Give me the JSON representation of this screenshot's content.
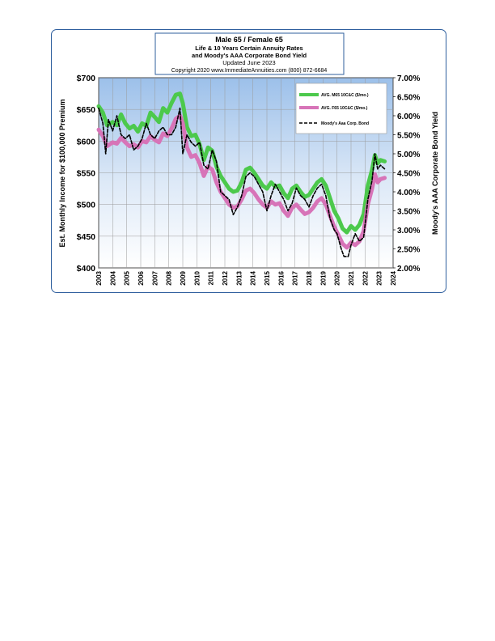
{
  "chart_data": {
    "type": "line",
    "title": "Male 65 / Female 65",
    "subtitle_lines": [
      "Life & 10 Years Certain Annuity Rates",
      "and Moody's AAA Corporate Bond Yield",
      "Updated June 2023",
      "Copyright 2020   www.ImmediateAnnuities.com   (800) 872-6684"
    ],
    "ylabel": "Est. Monthly Income for $100,000 Premium",
    "y2label": "Moody's AAA Corporate Bond Yield",
    "xlim": [
      2003,
      2024
    ],
    "ylim": [
      400,
      700
    ],
    "y2lim": [
      2.0,
      7.0
    ],
    "x_ticks": [
      "2003",
      "2004",
      "2005",
      "2006",
      "2007",
      "2008",
      "2009",
      "2010",
      "2011",
      "2012",
      "2013",
      "2014",
      "2015",
      "2016",
      "2017",
      "2018",
      "2019",
      "2020",
      "2021",
      "2022",
      "2023",
      "2024"
    ],
    "y_ticks": [
      "$400",
      "$450",
      "$500",
      "$550",
      "$600",
      "$650",
      "$700"
    ],
    "y2_ticks": [
      "2.00%",
      "2.50%",
      "3.00%",
      "3.50%",
      "4.00%",
      "4.50%",
      "5.00%",
      "5.50%",
      "6.00%",
      "6.50%",
      "7.00%"
    ],
    "legend_position": "top-right",
    "series": [
      {
        "name": "AVG. M65 10C&C ($/mo.)",
        "axis": "left",
        "color": "#4cc94c",
        "style": "solid-thick",
        "points": [
          [
            2003.0,
            655
          ],
          [
            2003.3,
            645
          ],
          [
            2003.6,
            625
          ],
          [
            2004.0,
            630
          ],
          [
            2004.3,
            625
          ],
          [
            2004.6,
            642
          ],
          [
            2004.9,
            628
          ],
          [
            2005.2,
            620
          ],
          [
            2005.5,
            624
          ],
          [
            2005.8,
            615
          ],
          [
            2006.1,
            628
          ],
          [
            2006.4,
            624
          ],
          [
            2006.7,
            645
          ],
          [
            2007.0,
            638
          ],
          [
            2007.3,
            630
          ],
          [
            2007.6,
            652
          ],
          [
            2007.9,
            645
          ],
          [
            2008.2,
            660
          ],
          [
            2008.5,
            673
          ],
          [
            2008.8,
            675
          ],
          [
            2009.0,
            660
          ],
          [
            2009.3,
            622
          ],
          [
            2009.6,
            608
          ],
          [
            2009.9,
            610
          ],
          [
            2010.2,
            595
          ],
          [
            2010.5,
            570
          ],
          [
            2010.8,
            590
          ],
          [
            2011.1,
            585
          ],
          [
            2011.4,
            560
          ],
          [
            2011.7,
            545
          ],
          [
            2012.0,
            535
          ],
          [
            2012.3,
            525
          ],
          [
            2012.6,
            520
          ],
          [
            2012.9,
            522
          ],
          [
            2013.2,
            535
          ],
          [
            2013.5,
            555
          ],
          [
            2013.8,
            558
          ],
          [
            2014.1,
            550
          ],
          [
            2014.4,
            540
          ],
          [
            2014.7,
            530
          ],
          [
            2015.0,
            525
          ],
          [
            2015.3,
            535
          ],
          [
            2015.6,
            528
          ],
          [
            2015.9,
            530
          ],
          [
            2016.2,
            518
          ],
          [
            2016.5,
            510
          ],
          [
            2016.8,
            525
          ],
          [
            2017.1,
            530
          ],
          [
            2017.4,
            520
          ],
          [
            2017.7,
            512
          ],
          [
            2018.0,
            515
          ],
          [
            2018.3,
            525
          ],
          [
            2018.6,
            535
          ],
          [
            2018.9,
            540
          ],
          [
            2019.2,
            530
          ],
          [
            2019.5,
            510
          ],
          [
            2019.8,
            490
          ],
          [
            2020.1,
            478
          ],
          [
            2020.4,
            462
          ],
          [
            2020.7,
            456
          ],
          [
            2021.0,
            466
          ],
          [
            2021.3,
            460
          ],
          [
            2021.6,
            468
          ],
          [
            2021.9,
            485
          ],
          [
            2022.2,
            530
          ],
          [
            2022.5,
            555
          ],
          [
            2022.7,
            578
          ],
          [
            2022.9,
            565
          ],
          [
            2023.1,
            570
          ],
          [
            2023.4,
            568
          ]
        ]
      },
      {
        "name": "AVG. F65 10C&C ($/mo.)",
        "axis": "left",
        "color": "#d774b8",
        "style": "solid-thick",
        "points": [
          [
            2003.0,
            618
          ],
          [
            2003.3,
            608
          ],
          [
            2003.6,
            592
          ],
          [
            2004.0,
            598
          ],
          [
            2004.3,
            596
          ],
          [
            2004.6,
            605
          ],
          [
            2004.9,
            598
          ],
          [
            2005.2,
            592
          ],
          [
            2005.5,
            595
          ],
          [
            2005.8,
            590
          ],
          [
            2006.1,
            600
          ],
          [
            2006.4,
            598
          ],
          [
            2006.7,
            608
          ],
          [
            2007.0,
            602
          ],
          [
            2007.3,
            598
          ],
          [
            2007.6,
            612
          ],
          [
            2007.9,
            608
          ],
          [
            2008.2,
            620
          ],
          [
            2008.5,
            635
          ],
          [
            2008.8,
            640
          ],
          [
            2009.0,
            628
          ],
          [
            2009.3,
            590
          ],
          [
            2009.6,
            575
          ],
          [
            2009.9,
            578
          ],
          [
            2010.2,
            565
          ],
          [
            2010.5,
            545
          ],
          [
            2010.8,
            560
          ],
          [
            2011.1,
            555
          ],
          [
            2011.4,
            535
          ],
          [
            2011.7,
            520
          ],
          [
            2012.0,
            510
          ],
          [
            2012.3,
            500
          ],
          [
            2012.6,
            495
          ],
          [
            2012.9,
            497
          ],
          [
            2013.2,
            508
          ],
          [
            2013.5,
            522
          ],
          [
            2013.8,
            525
          ],
          [
            2014.1,
            518
          ],
          [
            2014.4,
            508
          ],
          [
            2014.7,
            500
          ],
          [
            2015.0,
            495
          ],
          [
            2015.3,
            505
          ],
          [
            2015.6,
            500
          ],
          [
            2015.9,
            502
          ],
          [
            2016.2,
            490
          ],
          [
            2016.5,
            482
          ],
          [
            2016.8,
            495
          ],
          [
            2017.1,
            500
          ],
          [
            2017.4,
            492
          ],
          [
            2017.7,
            485
          ],
          [
            2018.0,
            488
          ],
          [
            2018.3,
            495
          ],
          [
            2018.6,
            505
          ],
          [
            2018.9,
            510
          ],
          [
            2019.2,
            500
          ],
          [
            2019.5,
            482
          ],
          [
            2019.8,
            465
          ],
          [
            2020.1,
            452
          ],
          [
            2020.4,
            438
          ],
          [
            2020.7,
            432
          ],
          [
            2021.0,
            440
          ],
          [
            2021.3,
            436
          ],
          [
            2021.6,
            442
          ],
          [
            2021.9,
            458
          ],
          [
            2022.2,
            500
          ],
          [
            2022.5,
            525
          ],
          [
            2022.7,
            548
          ],
          [
            2022.9,
            535
          ],
          [
            2023.1,
            540
          ],
          [
            2023.4,
            542
          ]
        ]
      },
      {
        "name": "Moody's Aaa Corp. Bond",
        "axis": "right",
        "color": "#000000",
        "style": "dashed",
        "points": [
          [
            2003.0,
            6.2
          ],
          [
            2003.3,
            5.8
          ],
          [
            2003.5,
            5.0
          ],
          [
            2003.7,
            5.9
          ],
          [
            2004.0,
            5.6
          ],
          [
            2004.3,
            6.0
          ],
          [
            2004.6,
            5.5
          ],
          [
            2004.9,
            5.4
          ],
          [
            2005.2,
            5.5
          ],
          [
            2005.5,
            5.1
          ],
          [
            2005.8,
            5.2
          ],
          [
            2006.1,
            5.4
          ],
          [
            2006.4,
            5.8
          ],
          [
            2006.7,
            5.5
          ],
          [
            2007.0,
            5.4
          ],
          [
            2007.3,
            5.6
          ],
          [
            2007.6,
            5.7
          ],
          [
            2007.9,
            5.5
          ],
          [
            2008.2,
            5.5
          ],
          [
            2008.5,
            5.7
          ],
          [
            2008.8,
            6.2
          ],
          [
            2009.0,
            5.0
          ],
          [
            2009.3,
            5.5
          ],
          [
            2009.6,
            5.3
          ],
          [
            2009.9,
            5.2
          ],
          [
            2010.2,
            5.3
          ],
          [
            2010.5,
            4.7
          ],
          [
            2010.8,
            4.6
          ],
          [
            2011.1,
            5.1
          ],
          [
            2011.4,
            4.8
          ],
          [
            2011.7,
            4.0
          ],
          [
            2012.0,
            3.9
          ],
          [
            2012.3,
            3.8
          ],
          [
            2012.6,
            3.4
          ],
          [
            2012.9,
            3.6
          ],
          [
            2013.2,
            3.9
          ],
          [
            2013.5,
            4.4
          ],
          [
            2013.8,
            4.5
          ],
          [
            2014.1,
            4.4
          ],
          [
            2014.4,
            4.2
          ],
          [
            2014.7,
            4.0
          ],
          [
            2015.0,
            3.5
          ],
          [
            2015.3,
            3.9
          ],
          [
            2015.6,
            4.2
          ],
          [
            2015.9,
            4.0
          ],
          [
            2016.2,
            3.8
          ],
          [
            2016.5,
            3.5
          ],
          [
            2016.8,
            3.7
          ],
          [
            2017.1,
            4.1
          ],
          [
            2017.4,
            3.9
          ],
          [
            2017.7,
            3.8
          ],
          [
            2018.0,
            3.6
          ],
          [
            2018.3,
            3.9
          ],
          [
            2018.6,
            4.1
          ],
          [
            2018.9,
            4.2
          ],
          [
            2019.2,
            3.9
          ],
          [
            2019.5,
            3.3
          ],
          [
            2019.8,
            3.0
          ],
          [
            2020.0,
            2.9
          ],
          [
            2020.3,
            2.5
          ],
          [
            2020.5,
            2.3
          ],
          [
            2020.8,
            2.3
          ],
          [
            2021.0,
            2.6
          ],
          [
            2021.3,
            2.9
          ],
          [
            2021.6,
            2.7
          ],
          [
            2021.9,
            2.8
          ],
          [
            2022.2,
            3.8
          ],
          [
            2022.5,
            4.3
          ],
          [
            2022.7,
            5.0
          ],
          [
            2022.9,
            4.6
          ],
          [
            2023.1,
            4.7
          ],
          [
            2023.4,
            4.6
          ]
        ]
      }
    ]
  }
}
